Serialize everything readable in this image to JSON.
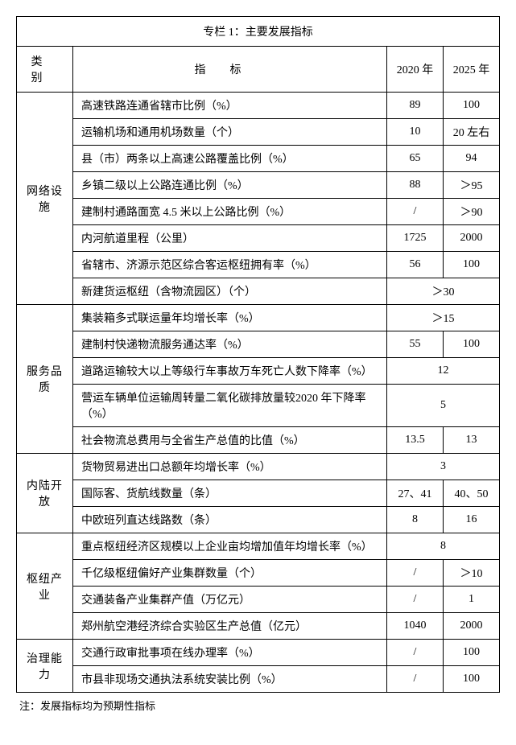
{
  "title": "专栏 1：主要发展指标",
  "headers": {
    "category": "类别",
    "indicator": "指标",
    "year2020": "2020 年",
    "year2025": "2025 年"
  },
  "categories": [
    {
      "name": "网络设施",
      "rows": [
        {
          "indicator": "高速铁路连通省辖市比例（%）",
          "v2020": "89",
          "v2025": "100"
        },
        {
          "indicator": "运输机场和通用机场数量（个）",
          "v2020": "10",
          "v2025": "20 左右"
        },
        {
          "indicator": "县（市）两条以上高速公路覆盖比例（%）",
          "v2020": "65",
          "v2025": "94"
        },
        {
          "indicator": "乡镇二级以上公路连通比例（%）",
          "v2020": "88",
          "v2025": "＞95"
        },
        {
          "indicator": "建制村通路面宽 4.5 米以上公路比例（%）",
          "v2020": "/",
          "v2025": "＞90"
        },
        {
          "indicator": "内河航道里程（公里）",
          "v2020": "1725",
          "v2025": "2000"
        },
        {
          "indicator": "省辖市、济源示范区综合客运枢纽拥有率（%）",
          "v2020": "56",
          "v2025": "100"
        },
        {
          "indicator": "新建货运枢纽（含物流园区）（个）",
          "merged": "＞30"
        }
      ]
    },
    {
      "name": "服务品质",
      "rows": [
        {
          "indicator": "集装箱多式联运量年均增长率（%）",
          "merged": "＞15"
        },
        {
          "indicator": "建制村快递物流服务通达率（%）",
          "v2020": "55",
          "v2025": "100"
        },
        {
          "indicator": "道路运输较大以上等级行车事故万车死亡人数下降率（%）",
          "merged": "12"
        },
        {
          "indicator": "营运车辆单位运输周转量二氧化碳排放量较2020 年下降率（%）",
          "merged": "5"
        },
        {
          "indicator": "社会物流总费用与全省生产总值的比值（%）",
          "v2020": "13.5",
          "v2025": "13"
        }
      ]
    },
    {
      "name": "内陆开放",
      "rows": [
        {
          "indicator": "货物贸易进出口总额年均增长率（%）",
          "merged": "3"
        },
        {
          "indicator": "国际客、货航线数量（条）",
          "v2020": "27、41",
          "v2025": "40、50"
        },
        {
          "indicator": "中欧班列直达线路数（条）",
          "v2020": "8",
          "v2025": "16"
        }
      ]
    },
    {
      "name": "枢纽产业",
      "rows": [
        {
          "indicator": "重点枢纽经济区规模以上企业亩均增加值年均增长率（%）",
          "merged": "8"
        },
        {
          "indicator": "千亿级枢纽偏好产业集群数量（个）",
          "v2020": "/",
          "v2025": "＞10"
        },
        {
          "indicator": "交通装备产业集群产值（万亿元）",
          "v2020": "/",
          "v2025": "1"
        },
        {
          "indicator": "郑州航空港经济综合实验区生产总值（亿元）",
          "v2020": "1040",
          "v2025": "2000"
        }
      ]
    },
    {
      "name": "治理能力",
      "rows": [
        {
          "indicator": "交通行政审批事项在线办理率（%）",
          "v2020": "/",
          "v2025": "100"
        },
        {
          "indicator": "市县非现场交通执法系统安装比例（%）",
          "v2020": "/",
          "v2025": "100"
        }
      ]
    }
  ],
  "footnote": "注：发展指标均为预期性指标"
}
